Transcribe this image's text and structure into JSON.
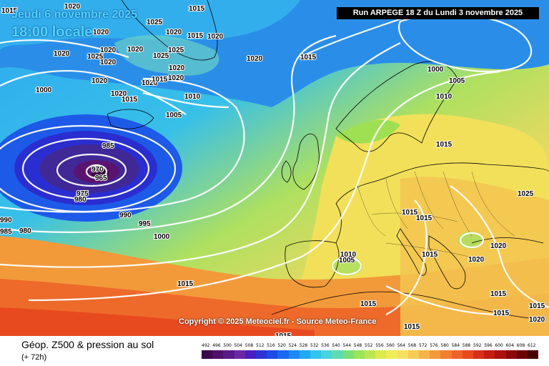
{
  "header": {
    "date_line": "Jeudi 6 novembre 2025",
    "time_line": "18:00 locale",
    "run_info": "Run ARPEGE 18 Z du Lundi 3 novembre 2025"
  },
  "copyright": "Copyright © 2025 Meteociel.fr - Source Meteo-France",
  "footer": {
    "title": "Géop. Z500 & pression au sol",
    "subtitle": "(+ 72h)"
  },
  "legend": {
    "labels": [
      "492",
      "496",
      "500",
      "504",
      "508",
      "512",
      "516",
      "520",
      "524",
      "528",
      "532",
      "536",
      "540",
      "544",
      "548",
      "552",
      "556",
      "560",
      "564",
      "568",
      "572",
      "576",
      "580",
      "584",
      "588",
      "592",
      "596",
      "600",
      "604",
      "608",
      "612"
    ],
    "colors": [
      "#3a0a4a",
      "#50106a",
      "#5a1a8a",
      "#6a28a6",
      "#4a1ec0",
      "#2e34d4",
      "#1e4ae6",
      "#1868f2",
      "#1a8af4",
      "#22a8f4",
      "#30c4f0",
      "#48d4dc",
      "#5cdcb0",
      "#78e078",
      "#9ae458",
      "#bce650",
      "#dcea50",
      "#f0ec56",
      "#f6e060",
      "#f6cc54",
      "#f6b44a",
      "#f49a3c",
      "#f27e30",
      "#ee6428",
      "#e84a20",
      "#d83018",
      "#c41c10",
      "#aa1010",
      "#8a0808",
      "#6a0404",
      "#480202"
    ]
  },
  "isobar_labels": [
    "1015",
    "1020",
    "1020",
    "1025",
    "1020",
    "1020",
    "1025",
    "1025",
    "1020",
    "1020",
    "1020",
    "1025",
    "1020",
    "1020",
    "1020",
    "1015",
    "1020",
    "1020",
    "1000",
    "1020",
    "1015",
    "1015",
    "1015",
    "1010",
    "1005",
    "1000",
    "1005",
    "1010",
    "1015",
    "1025",
    "1015",
    "1015",
    "1020",
    "1020",
    "1015",
    "1015",
    "1015",
    "1010",
    "1005",
    "1015",
    "1015",
    "1015",
    "1015",
    "1020",
    "985",
    "970",
    "965",
    "975",
    "980",
    "990",
    "995",
    "1000",
    "985",
    "980",
    "990",
    "1015",
    "1020",
    "1015"
  ]
}
